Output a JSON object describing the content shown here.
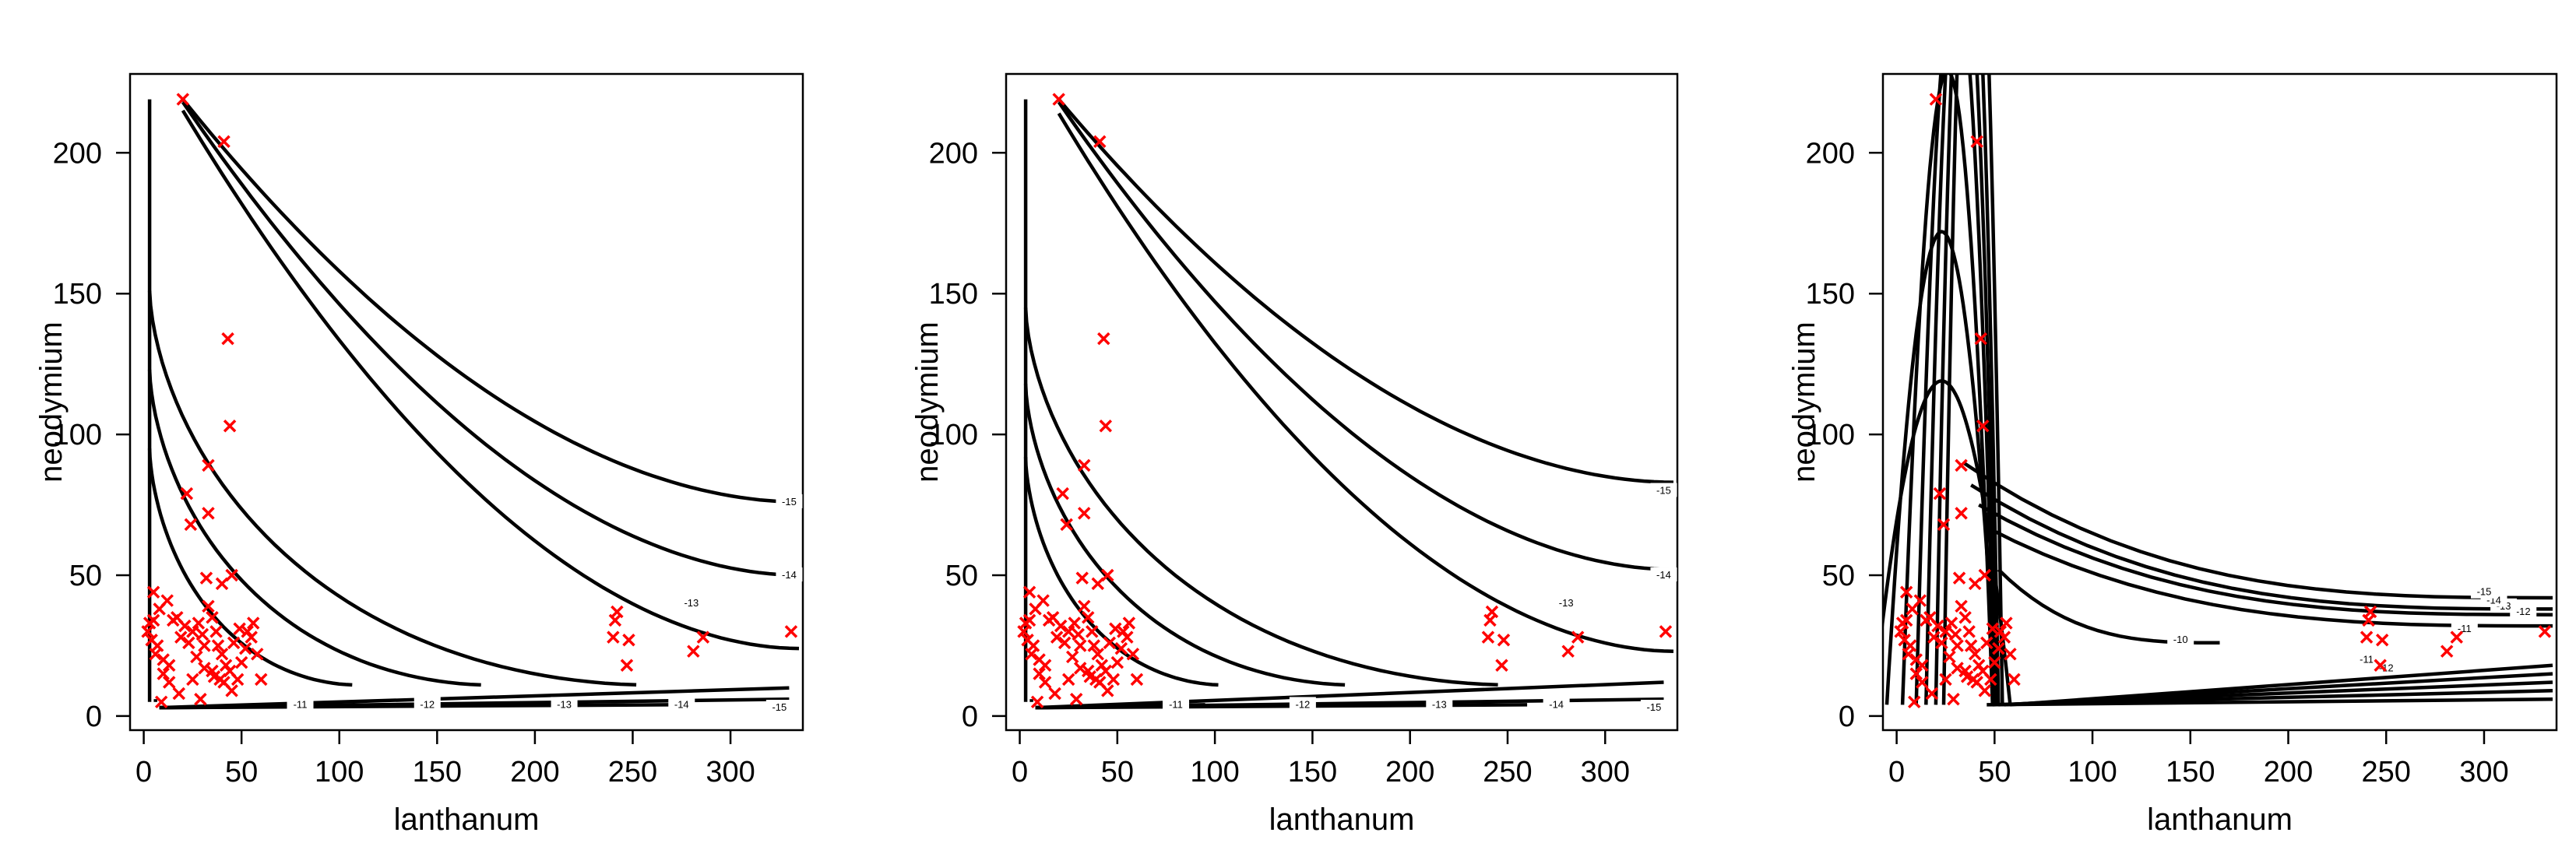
{
  "chart_data": [
    {
      "type": "contour",
      "panel": "left",
      "xlabel": "lanthanum",
      "ylabel": "neodymium",
      "xlim": [
        -7,
        337
      ],
      "ylim": [
        -5,
        228
      ],
      "xticks": [
        0,
        50,
        100,
        150,
        200,
        250,
        300
      ],
      "yticks": [
        0,
        50,
        100,
        150,
        200
      ],
      "grid": false,
      "legend": "none",
      "contour_levels": [
        "-11",
        "-12",
        "-13",
        "-14",
        "-15"
      ],
      "point_color": "#ff0000",
      "line_color": "#000000"
    },
    {
      "type": "contour",
      "panel": "middle",
      "xlabel": "lanthanum",
      "ylabel": "neodymium",
      "xlim": [
        -7,
        337
      ],
      "ylim": [
        -5,
        228
      ],
      "xticks": [
        0,
        50,
        100,
        150,
        200,
        250,
        300
      ],
      "yticks": [
        0,
        50,
        100,
        150,
        200
      ],
      "grid": false,
      "legend": "none",
      "contour_levels": [
        "-11",
        "-12",
        "-13",
        "-14",
        "-15"
      ],
      "point_color": "#ff0000",
      "line_color": "#000000"
    },
    {
      "type": "contour",
      "panel": "right",
      "xlabel": "lanthanum",
      "ylabel": "neodymium",
      "xlim": [
        -7,
        337
      ],
      "ylim": [
        -5,
        228
      ],
      "xticks": [
        0,
        50,
        100,
        150,
        200,
        250,
        300
      ],
      "yticks": [
        0,
        50,
        100,
        150,
        200
      ],
      "grid": false,
      "legend": "none",
      "contour_levels": [
        "-10",
        "-11",
        "-12",
        "-13",
        "-14",
        "-15"
      ],
      "point_color": "#ff0000",
      "line_color": "#000000"
    }
  ],
  "observations": {
    "name": "samples",
    "marker": "x",
    "points": [
      [
        20,
        219
      ],
      [
        41,
        204
      ],
      [
        43,
        134
      ],
      [
        44,
        103
      ],
      [
        33,
        89
      ],
      [
        22,
        79
      ],
      [
        33,
        72
      ],
      [
        24,
        68
      ],
      [
        45,
        50
      ],
      [
        40,
        47
      ],
      [
        32,
        49
      ],
      [
        5,
        44
      ],
      [
        8,
        38
      ],
      [
        5,
        34
      ],
      [
        3,
        33
      ],
      [
        2,
        30
      ],
      [
        4,
        27
      ],
      [
        7,
        25
      ],
      [
        6,
        22
      ],
      [
        10,
        20
      ],
      [
        13,
        18
      ],
      [
        10,
        15
      ],
      [
        13,
        12
      ],
      [
        17,
        35
      ],
      [
        21,
        32
      ],
      [
        19,
        28
      ],
      [
        25,
        30
      ],
      [
        23,
        26
      ],
      [
        28,
        33
      ],
      [
        30,
        29
      ],
      [
        31,
        25
      ],
      [
        27,
        21
      ],
      [
        33,
        39
      ],
      [
        35,
        35
      ],
      [
        37,
        30
      ],
      [
        38,
        25
      ],
      [
        40,
        22
      ],
      [
        42,
        18
      ],
      [
        35,
        16
      ],
      [
        36,
        14
      ],
      [
        39,
        13
      ],
      [
        41,
        12
      ],
      [
        44,
        16
      ],
      [
        45,
        9
      ],
      [
        48,
        13
      ],
      [
        50,
        19
      ],
      [
        52,
        24
      ],
      [
        55,
        28
      ],
      [
        56,
        33
      ],
      [
        53,
        30
      ],
      [
        58,
        22
      ],
      [
        60,
        13
      ],
      [
        29,
        6
      ],
      [
        9,
        5
      ],
      [
        18,
        8
      ],
      [
        12,
        41
      ],
      [
        15,
        34
      ],
      [
        46,
        26
      ],
      [
        49,
        31
      ],
      [
        31,
        17
      ],
      [
        25,
        13
      ],
      [
        242,
        37
      ],
      [
        241,
        34
      ],
      [
        240,
        28
      ],
      [
        248,
        27
      ],
      [
        247,
        18
      ],
      [
        286,
        28
      ],
      [
        281,
        23
      ],
      [
        331,
        30
      ]
    ]
  }
}
